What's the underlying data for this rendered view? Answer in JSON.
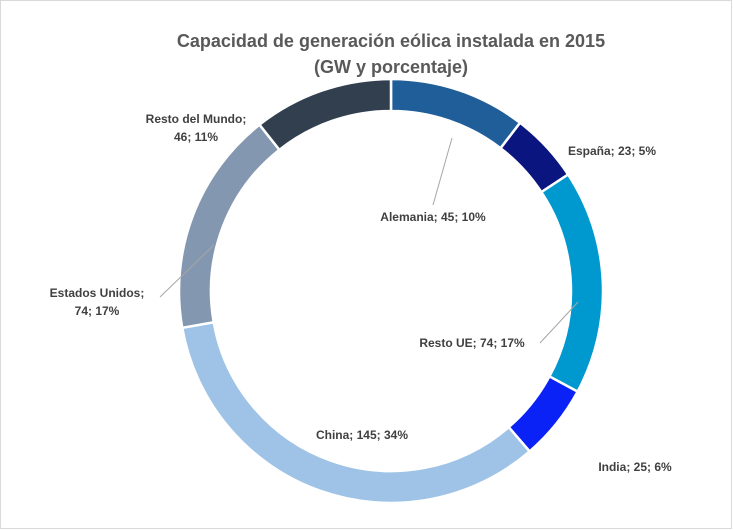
{
  "chart_data": {
    "type": "donut",
    "title": "Capacidad de generación eólica instalada en 2015",
    "subtitle": "(GW y porcentaje)",
    "values": [
      45,
      23,
      74,
      25,
      145,
      74,
      46
    ],
    "value_labels": [
      [
        "Alemania; 45; 10%"
      ],
      [
        "España; 23; 5%"
      ],
      [
        "Resto UE; 74; 17%"
      ],
      [
        "India; 25; 6%"
      ],
      [
        "China; 145; 34%"
      ],
      [
        "Estados Unidos;",
        "74; 17%"
      ],
      [
        "Resto del Mundo;",
        "46; 11%"
      ]
    ],
    "colors": [
      "#1f5e99",
      "#0b1580",
      "#0099cf",
      "#0a22f5",
      "#9fc3e6",
      "#8497b0",
      "#323f4f"
    ]
  }
}
